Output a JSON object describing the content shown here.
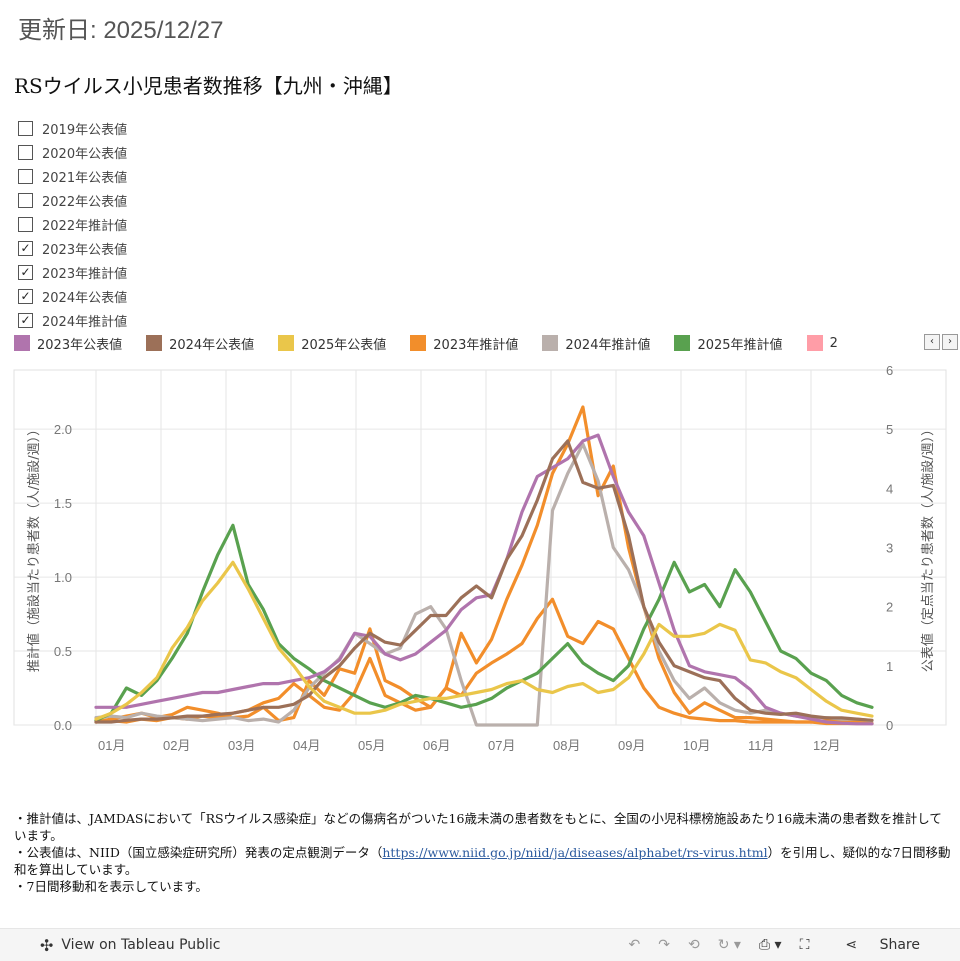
{
  "updated_text": "更新日: 2025/12/27",
  "title": "RSウイルス小児患者数推移【九州・沖縄】",
  "filter_items": [
    {
      "label": "2019年公表値",
      "checked": false
    },
    {
      "label": "2020年公表値",
      "checked": false
    },
    {
      "label": "2021年公表値",
      "checked": false
    },
    {
      "label": "2022年公表値",
      "checked": false
    },
    {
      "label": "2022年推計値",
      "checked": false
    },
    {
      "label": "2023年公表値",
      "checked": true
    },
    {
      "label": "2023年推計値",
      "checked": true
    },
    {
      "label": "2024年公表値",
      "checked": true
    },
    {
      "label": "2024年推計値",
      "checked": true
    }
  ],
  "legend": [
    {
      "label": "2023年公表値",
      "color": "#b074ad"
    },
    {
      "label": "2024年公表値",
      "color": "#9c7058"
    },
    {
      "label": "2025年公表値",
      "color": "#eac64a"
    },
    {
      "label": "2023年推計値",
      "color": "#f28e2b"
    },
    {
      "label": "2024年推計値",
      "color": "#bab0ac"
    },
    {
      "label": "2025年推計値",
      "color": "#59a14f"
    },
    {
      "label": "2",
      "color": "#ff9da7"
    }
  ],
  "icons": {
    "legend_prev": "chevron-left-icon",
    "legend_next": "chevron-right-icon"
  },
  "chart_data": {
    "type": "line",
    "x_unit": "week",
    "months": [
      "01月",
      "02月",
      "03月",
      "04月",
      "05月",
      "06月",
      "07月",
      "08月",
      "09月",
      "10月",
      "11月",
      "12月"
    ],
    "ylabel_left": "推計値（施設当たり患者数（人/施設/週））",
    "ylabel_right": "公表値（定点当たり患者数（人/施設/週））",
    "ylim_left": [
      0,
      2.4
    ],
    "yticks_left": [
      "0.0",
      "0.5",
      "1.0",
      "1.5",
      "2.0"
    ],
    "ylim_right": [
      0,
      6
    ],
    "yticks_right": [
      "0",
      "1",
      "2",
      "3",
      "4",
      "5",
      "6"
    ],
    "grid": true,
    "series": [
      {
        "name": "2023年推計値",
        "axis": "left",
        "color": "#f28e2b",
        "values": [
          0.02,
          0.04,
          0.06,
          0.08,
          0.05,
          0.07,
          0.12,
          0.1,
          0.08,
          0.05,
          0.06,
          0.12,
          0.03,
          0.05,
          0.3,
          0.2,
          0.38,
          0.35,
          0.65,
          0.3,
          0.25,
          0.18,
          0.12,
          0.25,
          0.62,
          0.42,
          0.58,
          0.85,
          1.08,
          1.35,
          1.7,
          1.9,
          2.15,
          1.55,
          1.75,
          1.2,
          0.8,
          0.45,
          0.22,
          0.08,
          0.15,
          0.1,
          0.05,
          0.05,
          0.04,
          0.03,
          0.02,
          0.02,
          0.03,
          0.02,
          0.02,
          0.01
        ]
      },
      {
        "name": "2023年推計値(2)",
        "axis": "left",
        "color": "#f28e2b",
        "values": [
          0.02,
          0.03,
          0.02,
          0.04,
          0.03,
          0.05,
          0.04,
          0.06,
          0.05,
          0.08,
          0.1,
          0.15,
          0.18,
          0.28,
          0.2,
          0.12,
          0.1,
          0.22,
          0.45,
          0.2,
          0.15,
          0.1,
          0.12,
          0.25,
          0.2,
          0.35,
          0.42,
          0.48,
          0.55,
          0.72,
          0.85,
          0.6,
          0.55,
          0.7,
          0.65,
          0.45,
          0.25,
          0.12,
          0.08,
          0.05,
          0.04,
          0.03,
          0.03,
          0.02,
          0.02,
          0.02,
          0.02,
          0.02,
          0.01,
          0.01,
          0.01,
          0.01
        ]
      },
      {
        "name": "2024年推計値",
        "axis": "left",
        "color": "#bab0ac",
        "values": [
          0.05,
          0.06,
          0.05,
          0.08,
          0.06,
          0.05,
          0.04,
          0.03,
          0.04,
          0.05,
          0.03,
          0.04,
          0.02,
          0.1,
          0.25,
          0.35,
          0.45,
          0.62,
          0.55,
          0.48,
          0.52,
          0.75,
          0.8,
          0.65,
          0.3,
          0.0,
          0.0,
          0.0,
          0.0,
          0.0,
          1.45,
          1.7,
          1.9,
          1.65,
          1.2,
          1.05,
          0.8,
          0.5,
          0.3,
          0.18,
          0.25,
          0.15,
          0.1,
          0.08,
          0.1,
          0.08,
          0.06,
          0.05,
          0.05,
          0.04,
          0.04,
          0.03
        ]
      },
      {
        "name": "2025年推計値",
        "axis": "left",
        "color": "#59a14f",
        "values": [
          0.03,
          0.08,
          0.25,
          0.2,
          0.3,
          0.45,
          0.62,
          0.9,
          1.15,
          1.35,
          0.95,
          0.78,
          0.55,
          0.45,
          0.38,
          0.3,
          0.25,
          0.2,
          0.15,
          0.12,
          0.15,
          0.2,
          0.18,
          0.15,
          0.12,
          0.14,
          0.18,
          0.25,
          0.3,
          0.35,
          0.45,
          0.55,
          0.42,
          0.35,
          0.3,
          0.4,
          0.65,
          0.85,
          1.1,
          0.9,
          0.95,
          0.8,
          1.05,
          0.9,
          0.7,
          0.5,
          0.45,
          0.35,
          0.3,
          0.2,
          0.15,
          0.12
        ]
      },
      {
        "name": "2023年公表値",
        "axis": "right",
        "color": "#b074ad",
        "values": [
          0.3,
          0.3,
          0.3,
          0.35,
          0.4,
          0.45,
          0.5,
          0.55,
          0.55,
          0.6,
          0.65,
          0.7,
          0.7,
          0.75,
          0.8,
          0.9,
          1.1,
          1.55,
          1.5,
          1.2,
          1.1,
          1.2,
          1.4,
          1.6,
          1.95,
          2.15,
          2.2,
          2.8,
          3.6,
          4.2,
          4.35,
          4.5,
          4.8,
          4.9,
          4.2,
          3.6,
          3.2,
          2.4,
          1.6,
          1.0,
          0.9,
          0.85,
          0.8,
          0.6,
          0.3,
          0.2,
          0.15,
          0.1,
          0.05,
          0.03,
          0.02,
          0.02
        ]
      },
      {
        "name": "2024年公表値",
        "axis": "right",
        "color": "#9c7058",
        "values": [
          0.05,
          0.05,
          0.08,
          0.1,
          0.1,
          0.12,
          0.15,
          0.15,
          0.18,
          0.2,
          0.25,
          0.3,
          0.3,
          0.35,
          0.5,
          0.8,
          1.0,
          1.3,
          1.55,
          1.4,
          1.35,
          1.6,
          1.85,
          1.85,
          2.15,
          2.35,
          2.15,
          2.8,
          3.2,
          3.8,
          4.5,
          4.8,
          4.1,
          4.0,
          4.05,
          3.2,
          2.0,
          1.4,
          1.0,
          0.9,
          0.8,
          0.75,
          0.45,
          0.25,
          0.2,
          0.18,
          0.2,
          0.15,
          0.12,
          0.12,
          0.1,
          0.08
        ]
      },
      {
        "name": "2025年公表値",
        "axis": "right",
        "color": "#eac64a",
        "values": [
          0.1,
          0.2,
          0.35,
          0.55,
          0.8,
          1.3,
          1.65,
          2.1,
          2.4,
          2.75,
          2.3,
          1.8,
          1.3,
          1.0,
          0.65,
          0.4,
          0.3,
          0.2,
          0.2,
          0.25,
          0.35,
          0.4,
          0.45,
          0.45,
          0.5,
          0.55,
          0.6,
          0.7,
          0.75,
          0.6,
          0.55,
          0.65,
          0.7,
          0.55,
          0.6,
          0.8,
          1.2,
          1.7,
          1.5,
          1.5,
          1.55,
          1.7,
          1.6,
          1.1,
          1.05,
          0.9,
          0.8,
          0.6,
          0.4,
          0.25,
          0.2,
          0.15
        ]
      }
    ]
  },
  "notes": {
    "line1": "・推計値は、JAMDASにおいて「RSウイルス感染症」などの傷病名がついた16歳未満の患者数をもとに、全国の小児科標榜施設あたり16歳未満の患者数を推計しています。",
    "line2_pre": "・公表値は、NIID（国立感染症研究所）発表の定点観測データ（",
    "line2_link": "https://www.niid.go.jp/niid/ja/diseases/alphabet/rs-virus.html",
    "line2_post": "）を引用し、疑似的な7日間移動和を算出しています。",
    "line3": "・7日間移動和を表示しています。"
  },
  "toolbar": {
    "view_label": "View on Tableau Public",
    "share_label": "Share",
    "icons": [
      "tableau-logo-icon",
      "undo-icon",
      "redo-icon",
      "revert-icon",
      "refresh-icon",
      "download-icon",
      "fullscreen-icon",
      "share-icon"
    ]
  }
}
